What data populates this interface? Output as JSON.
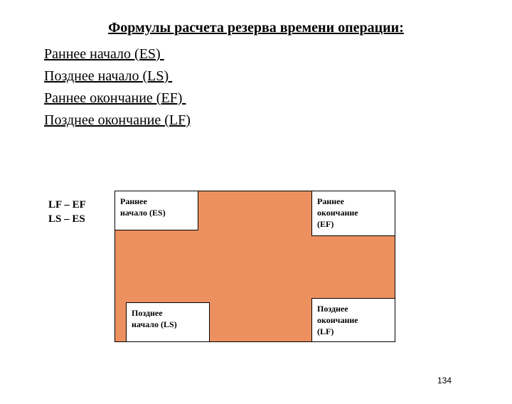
{
  "title": "Формулы расчета резерва времени операции:",
  "lines": {
    "l1": "Раннее начало (ES) ",
    "l2": "Позднее начало (LS) ",
    "l3": "Раннее окончание (EF) ",
    "l4": "Позднее окончание (LF)"
  },
  "formula": {
    "f1": "LF – EF",
    "f2": "LS – ES"
  },
  "diagram": {
    "fill_color": "#ed905f",
    "border_color": "#000000",
    "cell_bg": "#ffffff",
    "cells": {
      "tl": {
        "line1": "Раннее",
        "line2": "начало (ES)"
      },
      "tr": {
        "line1": "Раннее",
        "line2": "окончание",
        "line3": "(EF)"
      },
      "bl": {
        "line1": "Позднее",
        "line2": "начало (LS)"
      },
      "br": {
        "line1": "Позднее",
        "line2": "окончание",
        "line3": "(LF)"
      }
    }
  },
  "page_number": "134",
  "fonts": {
    "title_size_pt": 20,
    "body_size_pt": 20,
    "formula_size_pt": 15,
    "cell_size_pt": 12,
    "pagenum_size_pt": 12
  }
}
